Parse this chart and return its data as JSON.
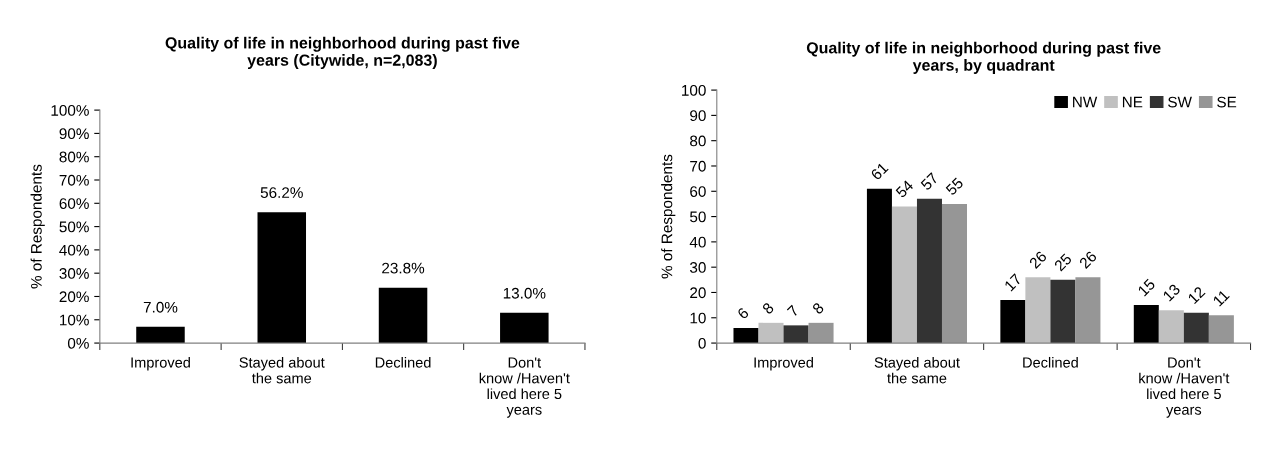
{
  "chart_data": [
    {
      "type": "bar",
      "title": "Quality of life in neighborhood during past five\nyears (Citywide, n=2,083)",
      "ylabel": "% of Respondents",
      "categories": [
        "Improved",
        "Stayed about\nthe same",
        "Declined",
        "Don't\nknow /Haven't\nlived here 5\nyears"
      ],
      "values": [
        7.0,
        56.2,
        23.8,
        13.0
      ],
      "color": "#000000",
      "value_labels": [
        "7.0%",
        "56.2%",
        "23.8%",
        "13.0%"
      ],
      "ylim": [
        0,
        100
      ],
      "yticks": [
        {
          "value": 0,
          "label": "0%"
        },
        {
          "value": 10,
          "label": "10%"
        },
        {
          "value": 20,
          "label": "20%"
        },
        {
          "value": 30,
          "label": "30%"
        },
        {
          "value": 40,
          "label": "40%"
        },
        {
          "value": 50,
          "label": "50%"
        },
        {
          "value": 60,
          "label": "60%"
        },
        {
          "value": 70,
          "label": "70%"
        },
        {
          "value": 80,
          "label": "80%"
        },
        {
          "value": 90,
          "label": "90%"
        },
        {
          "value": 100,
          "label": "100%"
        }
      ],
      "grid": false,
      "legend": false
    },
    {
      "type": "bar",
      "title": "Quality of life in neighborhood during past five\nyears, by quadrant",
      "ylabel": "% of Respondents",
      "categories": [
        "Improved",
        "Stayed about\nthe same",
        "Declined",
        "Don't\nknow /Haven't\nlived here 5\nyears"
      ],
      "series": [
        {
          "name": "NW",
          "color": "#000000",
          "values": [
            6,
            61,
            17,
            15
          ]
        },
        {
          "name": "NE",
          "color": "#c0c0c0",
          "values": [
            8,
            54,
            26,
            13
          ]
        },
        {
          "name": "SW",
          "color": "#333333",
          "values": [
            7,
            57,
            25,
            12
          ]
        },
        {
          "name": "SE",
          "color": "#969696",
          "values": [
            8,
            55,
            26,
            11
          ]
        }
      ],
      "data_labels": true,
      "ylim": [
        0,
        100
      ],
      "yticks": [
        0,
        10,
        20,
        30,
        40,
        50,
        60,
        70,
        80,
        90,
        100
      ],
      "grid": false,
      "legend": "top right"
    }
  ]
}
